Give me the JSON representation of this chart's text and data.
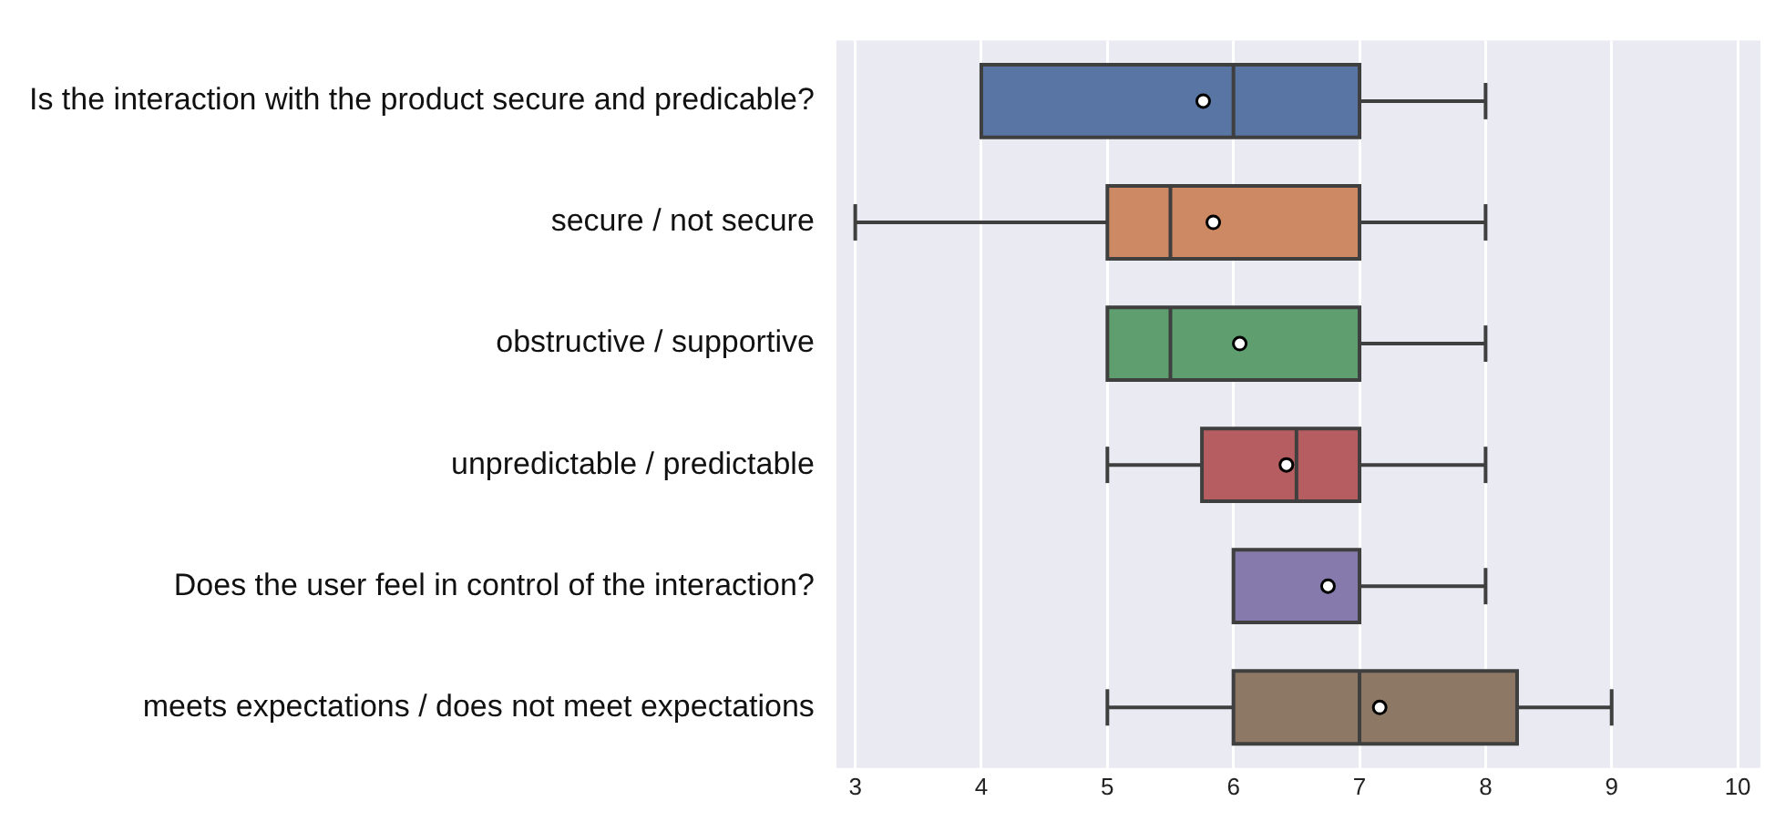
{
  "chart_data": {
    "type": "box",
    "orientation": "horizontal",
    "categories": [
      "Is the interaction with the product secure and predicable?",
      "secure / not secure",
      "obstructive / supportive",
      "unpredictable / predictable",
      "Does the user feel in control of the interaction?",
      "meets expectations / does not meet expectations"
    ],
    "boxes": [
      {
        "low": 4,
        "q1": 4,
        "median": 6,
        "q3": 7,
        "high": 8,
        "mean": 5.76
      },
      {
        "low": 3,
        "q1": 5,
        "median": 5.5,
        "q3": 7,
        "high": 8,
        "mean": 5.84
      },
      {
        "low": 5,
        "q1": 5,
        "median": 5.5,
        "q3": 7,
        "high": 8,
        "mean": 6.05
      },
      {
        "low": 5,
        "q1": 5.75,
        "median": 6.5,
        "q3": 7,
        "high": 8,
        "mean": 6.42
      },
      {
        "low": 6,
        "q1": 6,
        "median": 7,
        "q3": 7,
        "high": 8,
        "mean": 6.75
      },
      {
        "low": 5,
        "q1": 6,
        "median": 7,
        "q3": 8.25,
        "high": 9,
        "mean": 7.16
      }
    ],
    "colors": [
      "#5875a4",
      "#cc8963",
      "#5f9e6e",
      "#b55d60",
      "#857aab",
      "#8d7866"
    ],
    "xlim": [
      2.85,
      10.18
    ],
    "xticks": [
      3,
      4,
      5,
      6,
      7,
      8,
      9,
      10
    ],
    "grid": "x",
    "legend": false
  }
}
